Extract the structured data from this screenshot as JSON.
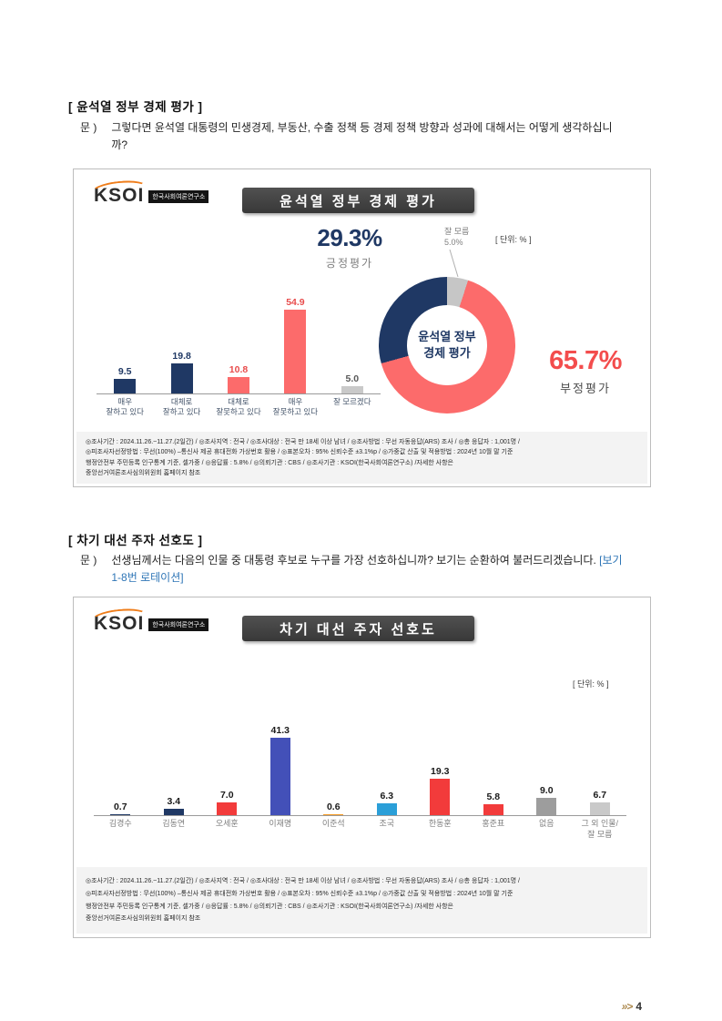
{
  "page": {
    "footer_marker": "»>",
    "page_number": "4"
  },
  "logo": {
    "brand": "KSOI",
    "org": "한국사회여론연구소"
  },
  "survey_note": "◎조사기간 : 2024.11.26.~11.27.(2일간) / ◎조사지역 : 전국 / ◎조사대상 : 전국 만 18세 이상 남녀 / ◎조사방법 : 무선 자동응답(ARS) 조사 / ◎총 응답자 : 1,001명 /\n◎피조사자선정방법 : 무선(100%) –통신사 제공 휴대전화 가상번호 활용 / ◎표본오차 : 95% 신뢰수준 ±3.1%p / ◎가중값 산출 및 적용방법 : 2024년 10월 말 기준\n행정안전부 주민등록 인구통계 기준, 셀가중 / ◎응답률 : 5.8% / ◎의뢰기관 : CBS / ◎조사기관 : KSOI(한국사회여론연구소) /자세한 사항은\n중앙선거여론조사심의위원회 홈페이지 참조",
  "section1": {
    "heading": "[ 윤석열 정부 경제 평가 ]",
    "question_label": "문 )",
    "question_text": "그렇다면 윤석열 대통령의 민생경제, 부동산, 수출 정책 등 경제 정책 방향과 성과에 대해서는 어떻게 생각하십니까?"
  },
  "section2": {
    "heading": "[ 차기 대선 주자 선호도 ]",
    "question_label": "문 )",
    "question_text": "선생님께서는 다음의 인물 중 대통령 후보로 누구를 가장 선호하십니까? 보기는 순환하여 불러드리겠습니다. ",
    "question_note": "[보기 1-8번 로테이션]"
  },
  "chart_data": [
    {
      "type": "bar",
      "title": "윤석열 정부 경제 평가",
      "unit_label": "[ 단위: % ]",
      "categories": [
        "매우\n잘하고 있다",
        "대체로\n잘하고 있다",
        "대체로\n잘못하고 있다",
        "매우\n잘못하고 있다",
        "잘 모르겠다"
      ],
      "values": [
        9.5,
        19.8,
        10.8,
        54.9,
        5.0
      ],
      "ylim": [
        0,
        60
      ],
      "bar_colors": [
        "#1f3864",
        "#1f3864",
        "#fc6b6b",
        "#fc6b6b",
        "#c9c9c9"
      ],
      "value_colors": [
        "#1f3864",
        "#1f3864",
        "#e84c4c",
        "#e84c4c",
        "#595959"
      ],
      "donut": {
        "type": "pie",
        "segments": [
          {
            "label": "잘 모름",
            "value": 5.0,
            "color": "#c6c6c6"
          },
          {
            "label": "부정평가",
            "value": 65.7,
            "color": "#fc6b6b"
          },
          {
            "label": "긍정평가",
            "value": 29.3,
            "color": "#1f3864"
          }
        ],
        "center_text": "윤석열 정부\n경제 평가"
      },
      "callout_positive": {
        "value": "29.3%",
        "label": "긍정평가"
      },
      "callout_negative": {
        "value": "65.7%",
        "label": "부정평가"
      },
      "callout_dontknow": "잘 모름\n5.0%"
    },
    {
      "type": "bar",
      "title": "차기 대선 주자 선호도",
      "unit_label": "[ 단위: % ]",
      "categories": [
        "김경수",
        "김동연",
        "오세훈",
        "이재명",
        "이준석",
        "조국",
        "한동훈",
        "홍준표",
        "없음",
        "그 외 인물/\n잘 모름"
      ],
      "values": [
        0.7,
        3.4,
        7.0,
        41.3,
        0.6,
        6.3,
        19.3,
        5.8,
        9.0,
        6.7
      ],
      "ylim": [
        0,
        45
      ],
      "bar_colors": [
        "#1f3864",
        "#1f3864",
        "#f23b3b",
        "#4350b8",
        "#f59a23",
        "#2b9fd8",
        "#f23b3b",
        "#f23b3b",
        "#9d9d9d",
        "#c9c9c9"
      ],
      "value_color": "#1a1a1a"
    }
  ]
}
